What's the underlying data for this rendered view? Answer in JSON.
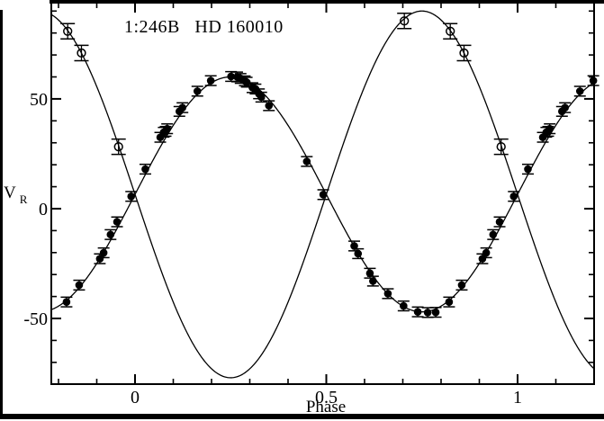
{
  "figure": {
    "title": "1:246B   HD 160010",
    "xlabel": "Phase",
    "ylabel_main": "V",
    "ylabel_sub": "R"
  },
  "colors": {
    "ink": "#000000",
    "background": "#ffffff"
  },
  "chart_data": {
    "type": "scatter",
    "title": "1:246B   HD 160010",
    "subtitle": "",
    "xlabel": "Phase",
    "ylabel": "V_R",
    "xlim": [
      -0.2188,
      1.2
    ],
    "ylim": [
      -79.9,
      93.8
    ],
    "grid": false,
    "legend": false,
    "x_major_ticks": {
      "values": [
        0,
        0.5,
        1
      ],
      "labels": [
        "0",
        "0.5",
        "1"
      ]
    },
    "x_minor_tick_step": 0.1,
    "y_major_ticks": {
      "values": [
        -50,
        0,
        50
      ],
      "labels": [
        "-50",
        "0",
        "50"
      ]
    },
    "y_minor_tick_step": 10,
    "phase_fold_window": [
      -0.2,
      1.2
    ],
    "systemic_velocity": 6.5,
    "curves": [
      {
        "name": "primary-fit",
        "model": "sine",
        "gamma": 6.5,
        "semi_amplitude": 53.5,
        "sign": 1
      },
      {
        "name": "secondary-fit",
        "model": "sine",
        "gamma": 6.5,
        "semi_amplitude": 83.5,
        "sign": -1
      }
    ],
    "series": [
      {
        "name": "primary",
        "marker": "filled-circle",
        "err": 2.2,
        "cap_halfwidth": 6.5,
        "points": [
          [
            0.027,
            18.0
          ],
          [
            0.066,
            32.5
          ],
          [
            0.075,
            34.8
          ],
          [
            0.08,
            35.2
          ],
          [
            0.084,
            36.4
          ],
          [
            0.116,
            44.3
          ],
          [
            0.124,
            46.0
          ],
          [
            0.163,
            53.5
          ],
          [
            0.198,
            58.3
          ],
          [
            0.251,
            60.2
          ],
          [
            0.267,
            60.0
          ],
          [
            0.276,
            59.3
          ],
          [
            0.287,
            58.2
          ],
          [
            0.292,
            57.6
          ],
          [
            0.307,
            55.1
          ],
          [
            0.315,
            54.5
          ],
          [
            0.324,
            52.3
          ],
          [
            0.33,
            50.8
          ],
          [
            0.35,
            46.9
          ],
          [
            0.449,
            21.5
          ],
          [
            0.492,
            6.4
          ],
          [
            0.573,
            -17.0
          ],
          [
            0.583,
            -20.5
          ],
          [
            0.614,
            -29.4
          ],
          [
            0.622,
            -33.0
          ],
          [
            0.661,
            -38.7
          ],
          [
            0.702,
            -44.3
          ],
          [
            0.739,
            -47.0
          ],
          [
            0.765,
            -47.3
          ],
          [
            0.786,
            -47.2
          ],
          [
            0.821,
            -42.5
          ],
          [
            0.854,
            -34.8
          ],
          [
            0.908,
            -22.8
          ],
          [
            0.918,
            -20.1
          ],
          [
            0.936,
            -11.8
          ],
          [
            0.953,
            -6.0
          ],
          [
            0.99,
            5.6
          ]
        ]
      },
      {
        "name": "secondary",
        "marker": "open-circle",
        "err": 3.5,
        "cap_halfwidth": 8,
        "points": [
          [
            0.704,
            85.5
          ],
          [
            0.824,
            80.8
          ],
          [
            0.86,
            70.9
          ],
          [
            0.957,
            28.2
          ]
        ]
      }
    ]
  }
}
